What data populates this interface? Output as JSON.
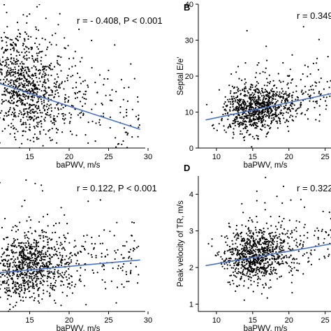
{
  "colors": {
    "points": "#000000",
    "fit_line": "#4a72c8",
    "background": "#ffffff"
  },
  "chart_data": [
    {
      "panel": "A",
      "type": "scatter",
      "letter": "",
      "xlabel": "baPWV, m/s",
      "ylabel": "",
      "xlim": [
        10,
        30
      ],
      "ylim": [
        0,
        10
      ],
      "x_ticks": [
        15,
        20,
        25,
        30
      ],
      "y_ticks": [],
      "stat_text": "r = - 0.408, P < 0.001",
      "point_cloud": {
        "center_x": 13.5,
        "center_y": 4.4,
        "spread_x": 3.2,
        "spread_y": 1.8,
        "slope": -0.18,
        "count": 1100,
        "tail_x": 29
      },
      "fit_line": {
        "x": [
          10,
          29
        ],
        "y": [
          4.7,
          1.3
        ]
      },
      "legend": "none",
      "grid": false
    },
    {
      "panel": "B",
      "type": "scatter",
      "letter": "B",
      "xlabel": "baPWV, m/s",
      "ylabel": "Septal E/e'",
      "xlim": [
        7.5,
        26
      ],
      "ylim": [
        0,
        40
      ],
      "x_ticks": [
        10,
        15,
        20,
        25
      ],
      "y_ticks": [
        0,
        10,
        20,
        30,
        40
      ],
      "stat_text": "r = 0.349,",
      "point_cloud": {
        "center_x": 14.5,
        "center_y": 10.5,
        "spread_x": 3.0,
        "spread_y": 3.4,
        "slope": 0.42,
        "count": 1000,
        "tail_x": 26
      },
      "fit_line": {
        "x": [
          8.5,
          26
        ],
        "y": [
          7.8,
          15.2
        ]
      },
      "legend": "none",
      "grid": false
    },
    {
      "panel": "C",
      "type": "scatter",
      "letter": "",
      "xlabel": "baPWV, m/s",
      "ylabel": "",
      "xlim": [
        10,
        30
      ],
      "ylim": [
        0,
        10
      ],
      "x_ticks": [
        15,
        20,
        25,
        30
      ],
      "y_ticks": [],
      "stat_text": "r = 0.122, P < 0.001",
      "point_cloud": {
        "center_x": 14,
        "center_y": 3.3,
        "spread_x": 3.2,
        "spread_y": 1.3,
        "slope": 0.05,
        "count": 1000,
        "tail_x": 29
      },
      "fit_line": {
        "x": [
          10,
          29
        ],
        "y": [
          2.8,
          3.8
        ]
      },
      "legend": "none",
      "grid": false
    },
    {
      "panel": "D",
      "type": "scatter",
      "letter": "D",
      "xlabel": "baPWV, m/s",
      "ylabel": "Peak velocity of TR, m/s",
      "xlim": [
        7.5,
        26
      ],
      "ylim": [
        0.8,
        4.5
      ],
      "x_ticks": [
        10,
        15,
        20,
        25
      ],
      "y_ticks": [
        1,
        2,
        3,
        4
      ],
      "stat_text": "r = 0.322,",
      "point_cloud": {
        "center_x": 14.5,
        "center_y": 2.3,
        "spread_x": 3.0,
        "spread_y": 0.38,
        "slope": 0.03,
        "count": 950,
        "tail_x": 26
      },
      "fit_line": {
        "x": [
          8.5,
          26
        ],
        "y": [
          2.05,
          2.65
        ]
      },
      "legend": "none",
      "grid": false
    }
  ]
}
